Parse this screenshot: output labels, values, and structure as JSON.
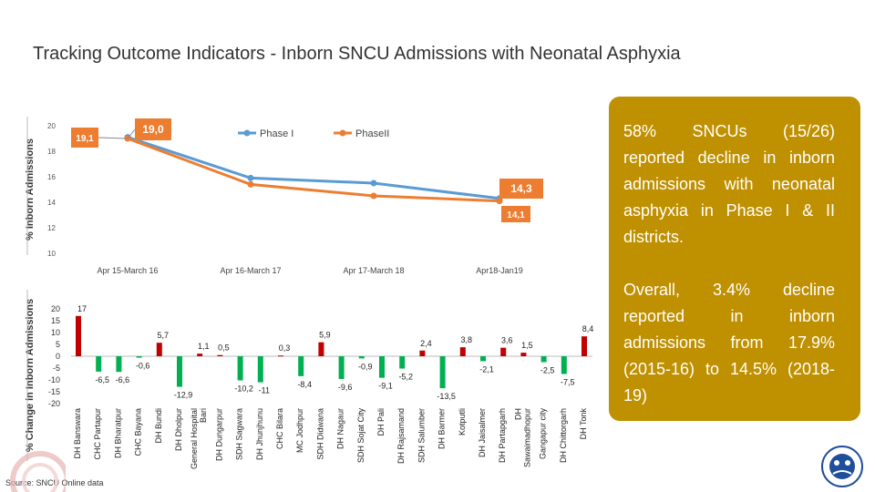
{
  "title": "Tracking Outcome Indicators - Inborn SNCU Admissions with Neonatal Asphyxia",
  "callout": {
    "top": "58% SNCUs (15/26) reported decline in inborn admissions with neonatal asphyxia in Phase I & II districts.",
    "bottom": "Overall, 3.4% decline reported in inborn admissions from 17.9% (2015-16) to 14.5% (2018-19)"
  },
  "source": "Source: SNCU Online data",
  "colors": {
    "phase1": "#5b9bd5",
    "phase2": "#ed7d31",
    "positive_bar": "#c00000",
    "negative_bar": "#00b050",
    "label_box": "#ed7d31",
    "callout_bg": "#bf9000"
  },
  "chart_data": [
    {
      "type": "line",
      "ylabel": "% Inborn Admissions",
      "ylim": [
        10,
        20
      ],
      "yticks": [
        "20",
        "18",
        "16",
        "14",
        "12",
        "10"
      ],
      "categories": [
        "Apr 15-March 16",
        "Apr 16-March 17",
        "Apr 17-March 18",
        "Apr18-Jan19"
      ],
      "series": [
        {
          "name": "Phase I",
          "values": [
            19.1,
            15.9,
            15.5,
            14.3
          ]
        },
        {
          "name": "PhaseII",
          "values": [
            19.0,
            15.4,
            14.5,
            14.1
          ]
        }
      ],
      "labels": [
        "19,1",
        "19,0",
        "14,3",
        "14,1"
      ],
      "legend": "top-center"
    },
    {
      "type": "bar",
      "ylabel": "% Change in Inborn Admissions",
      "ylim": [
        -20,
        20
      ],
      "yticks": [
        "20",
        "15",
        "10",
        "5",
        "0",
        "-5",
        "-10",
        "-15",
        "-20"
      ],
      "categories": [
        "DH Banswara",
        "CHC Partapur",
        "DH Bharatpur",
        "CHC Bayana",
        "DH Bundi",
        "DH Dholpur",
        "General Hospital Bari",
        "DH Dungarpur",
        "SDH Sagwara",
        "DH Jhunjhunu",
        "CHC Bilara",
        "MC Jodhpur",
        "SDH Didwana",
        "DH Nagaur",
        "SDH Sojat City",
        "DH Pali",
        "DH Rajsamand",
        "SDH Salumber",
        "DH Barmer",
        "Kotputli",
        "DH Jaisalmer",
        "DH Partapgarh",
        "DH Sawaimadhopur",
        "Gangapur city",
        "DH Chittorgarh",
        "DH Tonk"
      ],
      "category_lines": [
        [
          "DH Banswara"
        ],
        [
          "CHC Partapur"
        ],
        [
          "DH Bharatpur"
        ],
        [
          "CHC Bayana"
        ],
        [
          "DH Bundi"
        ],
        [
          "DH Dholpur"
        ],
        [
          "General Hospital",
          "Bari"
        ],
        [
          "DH Dungarpur"
        ],
        [
          "SDH Sagwara"
        ],
        [
          "DH Jhunjhunu"
        ],
        [
          "CHC Bilara"
        ],
        [
          "MC Jodhpur"
        ],
        [
          "SDH Didwana"
        ],
        [
          "DH Nagaur"
        ],
        [
          "SDH Sojat City"
        ],
        [
          "DH Pali"
        ],
        [
          "DH Rajsamand"
        ],
        [
          "SDH Salumber"
        ],
        [
          "DH Barmer"
        ],
        [
          "Kotputli"
        ],
        [
          "DH Jaisalmer"
        ],
        [
          "DH Partapgarh"
        ],
        [
          "DH",
          "Sawaimadhopur"
        ],
        [
          "Gangapur city"
        ],
        [
          "DH Chittorgarh"
        ],
        [
          "DH Tonk"
        ]
      ],
      "values": [
        17,
        -6.5,
        -6.6,
        -0.6,
        5.7,
        -12.9,
        1.1,
        0.5,
        -10.2,
        -11,
        0.3,
        -8.4,
        5.9,
        -9.6,
        -0.9,
        -9.1,
        -5.2,
        2.4,
        -13.5,
        3.8,
        -2.1,
        3.6,
        1.5,
        -2.5,
        -7.5,
        8.4
      ],
      "value_labels": [
        "17",
        "-6,5",
        "-6,6",
        "-0,6",
        "5,7",
        "-12,9",
        "1,1",
        "0,5",
        "-10,2",
        "-11",
        "0,3",
        "-8,4",
        "5,9",
        "-9,6",
        "-0,9",
        "-9,1",
        "-5,2",
        "2,4",
        "-13,5",
        "3,8",
        "-2,1",
        "3,6",
        "1,5",
        "-2,5",
        "-7,5",
        "8,4"
      ]
    }
  ]
}
